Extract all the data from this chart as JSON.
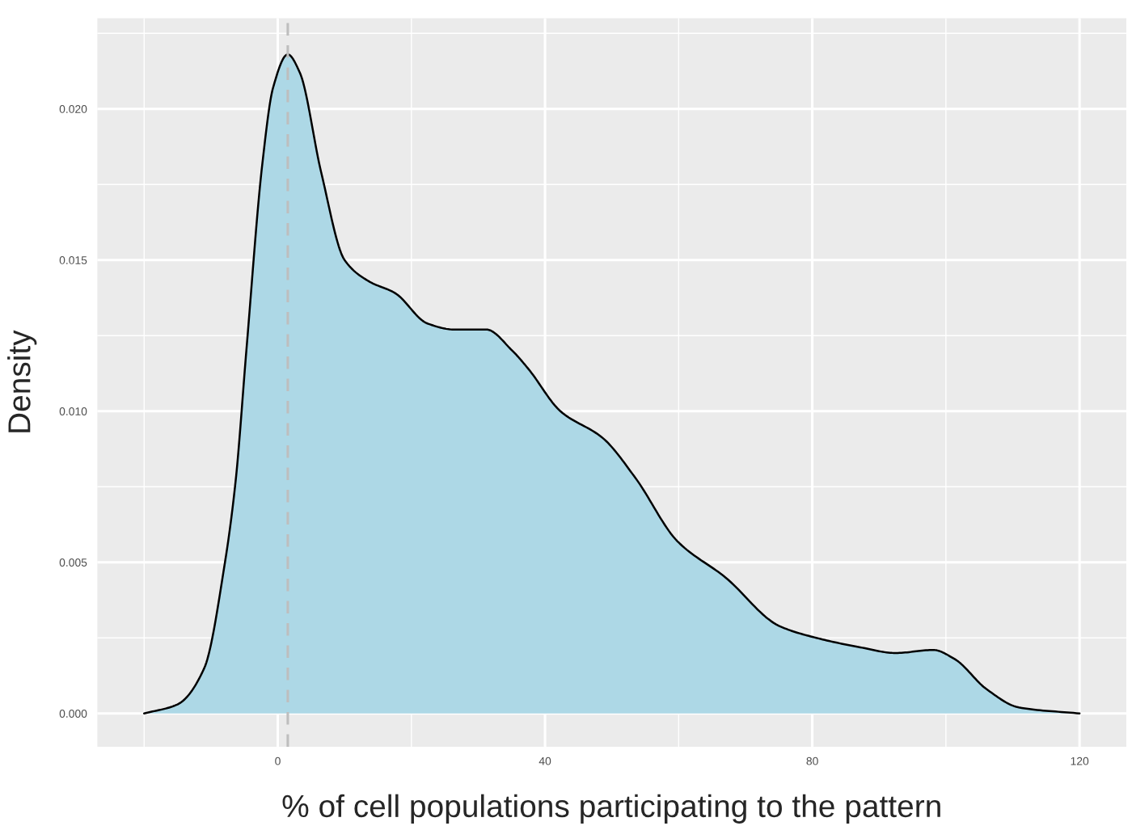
{
  "chart_data": {
    "type": "area",
    "xlabel": "% of cell populations participating to the pattern",
    "ylabel": "Density",
    "x": [
      -20,
      -15,
      -11,
      -7.9,
      -6.3,
      -4.7,
      -2.3,
      -0.7,
      1.5,
      3.3,
      6.5,
      10,
      13.6,
      17.6,
      22.4,
      26.4,
      31.2,
      35.1,
      37.5,
      42.3,
      48.7,
      53.5,
      59.8,
      67.0,
      75.0,
      80.6,
      86.9,
      92.5,
      98.1,
      101.3,
      106.1,
      110.9,
      120
    ],
    "series": [
      {
        "color": "#add8e6",
        "values": [
          0,
          0.0003,
          0.0015,
          0.005,
          0.0077,
          0.012,
          0.0182,
          0.0207,
          0.0218,
          0.0212,
          0.0179,
          0.015,
          0.0143,
          0.0139,
          0.0129,
          0.0127,
          0.0127,
          0.012,
          0.0114,
          0.01,
          0.0091,
          0.0078,
          0.0057,
          0.0045,
          0.0029,
          0.0025,
          0.0022,
          0.002,
          0.0021,
          0.0018,
          0.0008,
          0.0002,
          0
        ]
      }
    ],
    "xlim": [
      -27,
      127
    ],
    "xticks": [
      0,
      40,
      80,
      120
    ],
    "ylim": [
      -0.0011,
      0.023
    ],
    "yticks": [
      {
        "value": 0,
        "label": "0.000"
      },
      {
        "value": 0.005,
        "label": "0.005"
      },
      {
        "value": 0.01,
        "label": "0.010"
      },
      {
        "value": 0.015,
        "label": "0.015"
      },
      {
        "value": 0.02,
        "label": "0.020"
      }
    ],
    "ref_lines": [
      {
        "axis": "x",
        "value": 1.5,
        "color": "#bebebe",
        "line_style": "dashed"
      }
    ],
    "grid": true
  }
}
